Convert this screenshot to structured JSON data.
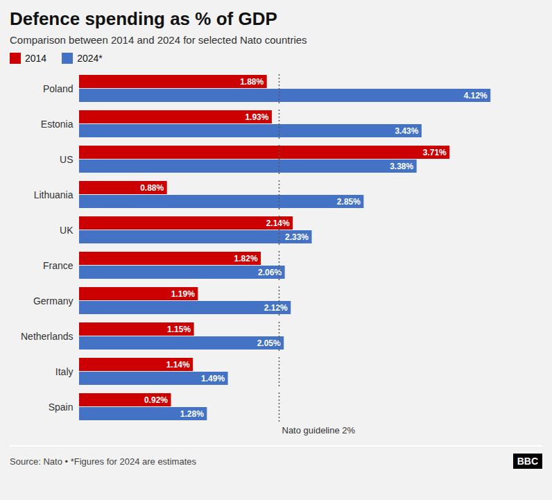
{
  "chart_data": {
    "type": "bar",
    "orientation": "horizontal",
    "title": "Defence spending as % of GDP",
    "subtitle": "Comparison between 2014 and 2024 for selected Nato countries",
    "categories": [
      "Spain",
      "Italy",
      "Netherlands",
      "Germany",
      "France",
      "UK",
      "Lithuania",
      "US",
      "Estonia",
      "Poland"
    ],
    "series": [
      {
        "name": "2014",
        "color": "#cc0000",
        "values": [
          0.92,
          1.14,
          1.15,
          1.19,
          1.82,
          2.14,
          0.88,
          3.71,
          1.93,
          1.88
        ],
        "value_labels": [
          "0.92%",
          "1.14%",
          "1.15%",
          "1.19%",
          "1.82%",
          "2.14%",
          "0.88%",
          "3.71%",
          "1.93%",
          "1.88%"
        ]
      },
      {
        "name": "2024*",
        "color": "#4472c4",
        "values": [
          1.28,
          1.49,
          2.05,
          2.12,
          2.06,
          2.33,
          2.85,
          3.38,
          3.43,
          4.12
        ],
        "value_labels": [
          "1.28%",
          "1.49%",
          "2.05%",
          "2.12%",
          "2.06%",
          "2.33%",
          "2.85%",
          "3.38%",
          "3.43%",
          "4.12%"
        ]
      }
    ],
    "xlim": [
      0,
      4.5
    ],
    "data_labels": true,
    "tick_labels": "y",
    "grid": false,
    "legend": "top left",
    "annotations": [
      {
        "text": "Nato guideline 2%",
        "x": 2.0
      }
    ],
    "source": "Source: Nato • *Figures for 2024 are estimates",
    "logo": "BBC"
  }
}
